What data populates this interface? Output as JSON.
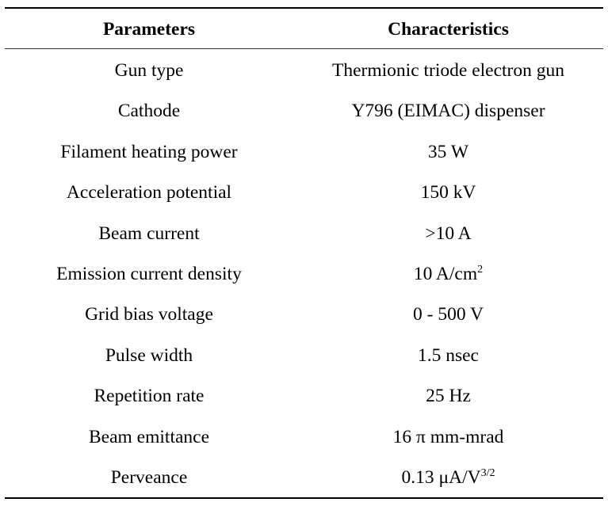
{
  "table": {
    "headers": [
      "Parameters",
      "Characteristics"
    ],
    "rows": [
      {
        "parameter": "Gun type",
        "value": "Thermionic triode electron gun",
        "sup": ""
      },
      {
        "parameter": "Cathode",
        "value": "Y796 (EIMAC) dispenser",
        "sup": ""
      },
      {
        "parameter": "Filament heating power",
        "value": "35 W",
        "sup": ""
      },
      {
        "parameter": "Acceleration potential",
        "value": "150 kV",
        "sup": ""
      },
      {
        "parameter": "Beam current",
        "value": ">10 A",
        "sup": ""
      },
      {
        "parameter": "Emission current density",
        "value": "10 A/cm",
        "sup": "2"
      },
      {
        "parameter": "Grid bias voltage",
        "value": "0 - 500 V",
        "sup": ""
      },
      {
        "parameter": "Pulse width",
        "value": "1.5 nsec",
        "sup": ""
      },
      {
        "parameter": "Repetition rate",
        "value": "25 Hz",
        "sup": ""
      },
      {
        "parameter": "Beam emittance",
        "value": "16 π mm-mrad",
        "sup": ""
      },
      {
        "parameter": "Perveance",
        "value": "0.13 μA/V",
        "sup": "3/2"
      }
    ]
  }
}
